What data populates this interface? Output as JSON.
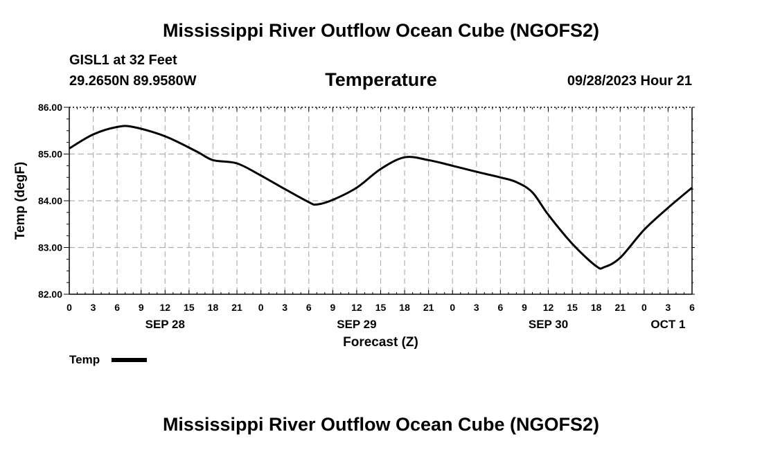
{
  "header": {
    "title": "Mississippi River Outflow Ocean Cube (NGOFS2)",
    "station": "GISL1 at 32 Feet",
    "coords": "29.2650N  89.9580W",
    "panel_title": "Temperature",
    "forecast_time": "09/28/2023 Hour 21"
  },
  "footer": {
    "title": "Mississippi River Outflow Ocean Cube (NGOFS2)"
  },
  "chart_data": {
    "type": "line",
    "title": "Temperature",
    "xlabel": "Forecast (Z)",
    "ylabel": "Temp (degF)",
    "xlim": [
      0,
      78
    ],
    "ylim": [
      82.0,
      86.0
    ],
    "grid": true,
    "legend_position": "bottom-left",
    "y_ticks": [
      "82.00",
      "83.00",
      "84.00",
      "85.00",
      "86.00"
    ],
    "x_tick_labels": [
      "0",
      "3",
      "6",
      "9",
      "12",
      "15",
      "18",
      "21",
      "0",
      "3",
      "6",
      "9",
      "12",
      "15",
      "18",
      "21",
      "0",
      "3",
      "6",
      "9",
      "12",
      "15",
      "18",
      "21",
      "0",
      "3",
      "6"
    ],
    "date_labels": [
      {
        "label": "SEP 28",
        "hour": 12
      },
      {
        "label": "SEP 29",
        "hour": 36
      },
      {
        "label": "SEP 30",
        "hour": 60
      },
      {
        "label": "OCT 1",
        "hour": 75
      }
    ],
    "series": [
      {
        "name": "Temp",
        "color": "#000000",
        "x": [
          0,
          3,
          6,
          8,
          12,
          16,
          18,
          21,
          24,
          27,
          30,
          31,
          33,
          36,
          39,
          42,
          45,
          48,
          51,
          54,
          56,
          58,
          60,
          63,
          66,
          67,
          69,
          72,
          75,
          78
        ],
        "y": [
          85.12,
          85.42,
          85.58,
          85.58,
          85.38,
          85.05,
          84.87,
          84.8,
          84.54,
          84.25,
          83.97,
          83.92,
          84.02,
          84.28,
          84.68,
          84.93,
          84.87,
          84.75,
          84.62,
          84.5,
          84.4,
          84.18,
          83.7,
          83.08,
          82.6,
          82.58,
          82.78,
          83.38,
          83.85,
          84.28
        ]
      }
    ]
  }
}
